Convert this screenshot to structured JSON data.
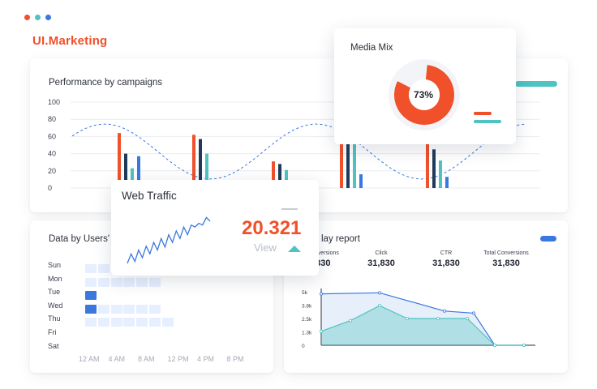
{
  "window": {
    "dot_colors": [
      "#f0502a",
      "#4ec3c0",
      "#3a78e0"
    ]
  },
  "brand": {
    "title": "UI.Marketing"
  },
  "colors": {
    "orange": "#f0502a",
    "navy": "#1f3a5a",
    "teal": "#4ec3c0",
    "blue": "#3a78e0",
    "light_blue": "#e6efff",
    "mid_blue": "#2f6ad6"
  },
  "performance": {
    "title": "Performance by campaigns",
    "chart_data": {
      "type": "bar",
      "ylim": [
        0,
        100
      ],
      "yticks": [
        "0",
        "20",
        "40",
        "60",
        "80",
        "100"
      ],
      "groups": [
        {
          "values": [
            64,
            40,
            23,
            37
          ],
          "colors": [
            "orange",
            "navy",
            "teal",
            "blue"
          ]
        },
        {
          "values": [
            62,
            57,
            40,
            0
          ],
          "colors": [
            "orange",
            "navy",
            "teal",
            "blue"
          ]
        },
        {
          "values": [
            31,
            28,
            21,
            0
          ],
          "colors": [
            "orange",
            "navy",
            "teal",
            "blue"
          ]
        },
        {
          "values": [
            57,
            57,
            55,
            16
          ],
          "colors": [
            "orange",
            "navy",
            "teal",
            "blue"
          ]
        },
        {
          "values": [
            51,
            45,
            32,
            13
          ],
          "colors": [
            "orange",
            "navy",
            "teal",
            "blue"
          ]
        }
      ],
      "trend_line": "dashed-wave"
    }
  },
  "users": {
    "title": "Data by Users' H",
    "days": [
      "Sun",
      "Mon",
      "Tue",
      "Wed",
      "Thu",
      "Fri",
      "Sat"
    ],
    "hours": [
      "12 AM",
      "4 AM",
      "8 AM",
      "12 PM",
      "4 PM",
      "8 PM"
    ],
    "heat": [
      [
        1,
        1,
        1,
        1,
        1,
        0,
        0,
        0,
        0
      ],
      [
        1,
        1,
        1,
        1,
        1,
        1,
        0,
        0,
        0
      ],
      [
        3,
        0,
        0,
        0,
        0,
        0,
        0,
        0,
        0
      ],
      [
        3,
        1,
        1,
        1,
        1,
        1,
        0,
        0,
        0
      ],
      [
        1,
        1,
        1,
        1,
        1,
        1,
        1,
        0,
        0
      ],
      [
        0,
        0,
        0,
        0,
        0,
        0,
        0,
        0,
        0
      ],
      [
        0,
        0,
        0,
        0,
        0,
        0,
        0,
        0,
        0
      ]
    ]
  },
  "display": {
    "title": "lay report",
    "metrics": [
      {
        "label": "onversions",
        "value": "1,830"
      },
      {
        "label": "Click",
        "value": "31,830"
      },
      {
        "label": "CTR",
        "value": "31,830"
      },
      {
        "label": "Total Conversions",
        "value": "31,830"
      }
    ],
    "chart_data": {
      "type": "area",
      "yticks": [
        "0",
        "1.3k",
        "2.5k",
        "3.8k",
        "5k"
      ],
      "ylim": [
        0,
        5000
      ],
      "series": [
        {
          "values": [
            4800,
            4800,
            4900,
            3200,
            3000,
            0,
            0
          ],
          "color": "blue"
        },
        {
          "values": [
            1300,
            2500,
            3700,
            2500,
            2500,
            0,
            0
          ],
          "color": "teal"
        }
      ]
    }
  },
  "traffic": {
    "title": "Web Traffic",
    "value": "20.321",
    "view_label": "View",
    "sparkline": [
      14,
      18,
      16,
      22,
      20,
      26,
      24,
      30,
      28,
      34,
      31,
      38,
      36,
      42,
      40,
      46,
      44,
      48,
      52,
      50,
      54,
      56,
      58
    ]
  },
  "media": {
    "title": "Media Mix",
    "percent_label": "73%",
    "chart_data": {
      "type": "pie",
      "values": [
        73,
        27
      ]
    }
  }
}
